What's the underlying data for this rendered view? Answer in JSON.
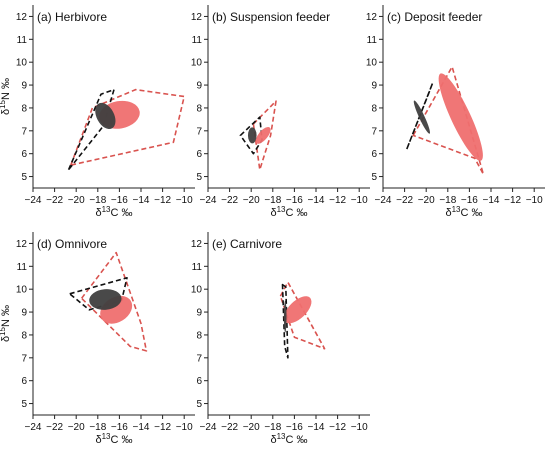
{
  "figure": {
    "x_axis_label_parts": [
      "δ",
      "13",
      "C ‰"
    ],
    "y_axis_label_parts": [
      "δ",
      "15",
      "N ‰"
    ]
  },
  "chart_data": [
    {
      "type": "scatter",
      "title": "(a) Herbivore",
      "xlim": [
        -24,
        -9
      ],
      "ylim": [
        4.5,
        12.5
      ],
      "x_ticks": [
        -24,
        -22,
        -20,
        -18,
        -16,
        -14,
        -12,
        -10
      ],
      "y_ticks": [
        5,
        6,
        7,
        8,
        9,
        10,
        11,
        12
      ],
      "grid": false,
      "shapes": [
        {
          "kind": "hull",
          "color": "#d9534f",
          "dashed": true,
          "points": [
            [
              -20.5,
              5.5
            ],
            [
              -18.5,
              8
            ],
            [
              -14.5,
              8.8
            ],
            [
              -10,
              8.5
            ],
            [
              -11,
              6.5
            ]
          ]
        },
        {
          "kind": "hull",
          "color": "#111111",
          "dashed": true,
          "points": [
            [
              -20.7,
              5.3
            ],
            [
              -17.7,
              8.6
            ],
            [
              -16.5,
              8.8
            ],
            [
              -17.5,
              7.2
            ]
          ]
        },
        {
          "kind": "ellipse",
          "color": "#ef6f6f",
          "center": [
            -16,
            7.7
          ],
          "semi_x": 1.9,
          "semi_y": 0.6,
          "angle_deg": -10
        },
        {
          "kind": "ellipse",
          "color": "#3f3f3f",
          "center": [
            -17.3,
            7.65
          ],
          "semi_x": 1.3,
          "semi_y": 0.38,
          "angle_deg": 62
        }
      ]
    },
    {
      "type": "scatter",
      "title": "(b) Suspension feeder",
      "xlim": [
        -24,
        -9
      ],
      "ylim": [
        4.5,
        12.5
      ],
      "x_ticks": [
        -24,
        -22,
        -20,
        -18,
        -16,
        -14,
        -12,
        -10
      ],
      "y_ticks": [
        5,
        6,
        7,
        8,
        9,
        10,
        11,
        12
      ],
      "grid": false,
      "shapes": [
        {
          "kind": "hull",
          "color": "#d9534f",
          "dashed": true,
          "points": [
            [
              -19.8,
              7.3
            ],
            [
              -17.7,
              8.3
            ],
            [
              -18.2,
              6.8
            ],
            [
              -19.2,
              5.3
            ]
          ]
        },
        {
          "kind": "hull",
          "color": "#111111",
          "dashed": true,
          "points": [
            [
              -21,
              6.8
            ],
            [
              -19.2,
              7.6
            ],
            [
              -19,
              6.6
            ],
            [
              -19.8,
              6
            ]
          ]
        },
        {
          "kind": "ellipse",
          "color": "#ef6f6f",
          "center": [
            -18.9,
            6.8
          ],
          "semi_x": 0.42,
          "semi_y": 0.45,
          "angle_deg": 40
        },
        {
          "kind": "ellipse",
          "color": "#3f3f3f",
          "center": [
            -19.9,
            6.8
          ],
          "semi_x": 0.4,
          "semi_y": 0.35,
          "angle_deg": 0
        }
      ]
    },
    {
      "type": "scatter",
      "title": "(c) Deposit feeder",
      "xlim": [
        -24,
        -9
      ],
      "ylim": [
        4.5,
        12.5
      ],
      "x_ticks": [
        -24,
        -22,
        -20,
        -18,
        -16,
        -14,
        -12,
        -10
      ],
      "y_ticks": [
        5,
        6,
        7,
        8,
        9,
        10,
        11,
        12
      ],
      "grid": false,
      "shapes": [
        {
          "kind": "hull",
          "color": "#d9534f",
          "dashed": true,
          "points": [
            [
              -21.2,
              6.8
            ],
            [
              -17.6,
              9.8
            ],
            [
              -14.7,
              5.1
            ],
            [
              -15.5,
              5.8
            ]
          ]
        },
        {
          "kind": "hull",
          "color": "#111111",
          "dashed": true,
          "points": [
            [
              -21.8,
              6.2
            ],
            [
              -19.4,
              9.1
            ],
            [
              -19.8,
              8.6
            ]
          ]
        },
        {
          "kind": "ellipse",
          "color": "#ef6f6f",
          "center": [
            -16.8,
            7.6
          ],
          "semi_x": 0.9,
          "semi_y": 2.1,
          "angle_deg": -25
        },
        {
          "kind": "ellipse",
          "color": "#3f3f3f",
          "center": [
            -20.4,
            7.6
          ],
          "semi_x": 0.25,
          "semi_y": 0.8,
          "angle_deg": -25
        }
      ]
    },
    {
      "type": "scatter",
      "title": "(d) Omnivore",
      "xlim": [
        -24,
        -9
      ],
      "ylim": [
        4.5,
        12.5
      ],
      "x_ticks": [
        -24,
        -22,
        -20,
        -18,
        -16,
        -14,
        -12,
        -10
      ],
      "y_ticks": [
        5,
        6,
        7,
        8,
        9,
        10,
        11,
        12
      ],
      "grid": false,
      "shapes": [
        {
          "kind": "hull",
          "color": "#d9534f",
          "dashed": true,
          "points": [
            [
              -19.5,
              9.6
            ],
            [
              -16.3,
              11.6
            ],
            [
              -14,
              8.5
            ],
            [
              -13.5,
              7.3
            ],
            [
              -15,
              7.5
            ]
          ]
        },
        {
          "kind": "hull",
          "color": "#111111",
          "dashed": true,
          "points": [
            [
              -20.6,
              9.8
            ],
            [
              -15.3,
              10.5
            ],
            [
              -15.8,
              9.5
            ],
            [
              -18.8,
              9.1
            ]
          ]
        },
        {
          "kind": "ellipse",
          "color": "#ef6f6f",
          "center": [
            -16.3,
            9.1
          ],
          "semi_x": 1.15,
          "semi_y": 0.75,
          "angle_deg": 58
        },
        {
          "kind": "ellipse",
          "color": "#3f3f3f",
          "center": [
            -17.3,
            9.55
          ],
          "semi_x": 1.5,
          "semi_y": 0.45,
          "angle_deg": -5
        }
      ]
    },
    {
      "type": "scatter",
      "title": "(e) Carnivore",
      "xlim": [
        -24,
        -9
      ],
      "ylim": [
        4.5,
        12.5
      ],
      "x_ticks": [
        -24,
        -22,
        -20,
        -18,
        -16,
        -14,
        -12,
        -10
      ],
      "y_ticks": [
        5,
        6,
        7,
        8,
        9,
        10,
        11,
        12
      ],
      "grid": false,
      "shapes": [
        {
          "kind": "hull",
          "color": "#d9534f",
          "dashed": true,
          "points": [
            [
              -17.3,
              9.7
            ],
            [
              -16.6,
              10.3
            ],
            [
              -13.2,
              7.4
            ],
            [
              -16,
              7.9
            ]
          ]
        },
        {
          "kind": "hull",
          "color": "#111111",
          "dashed": true,
          "points": [
            [
              -17.1,
              10.2
            ],
            [
              -16.8,
              10.1
            ],
            [
              -16.6,
              7
            ],
            [
              -16.9,
              7.5
            ]
          ]
        },
        {
          "kind": "ellipse",
          "color": "#ef6f6f",
          "center": [
            -15.7,
            9.1
          ],
          "semi_x": 1.6,
          "semi_y": 0.38,
          "angle_deg": -44
        },
        {
          "kind": "ellipse",
          "color": "#3f3f3f",
          "center": [
            -16.85,
            8.8
          ],
          "semi_x": 0.12,
          "semi_y": 0.7,
          "angle_deg": 0
        }
      ]
    }
  ]
}
